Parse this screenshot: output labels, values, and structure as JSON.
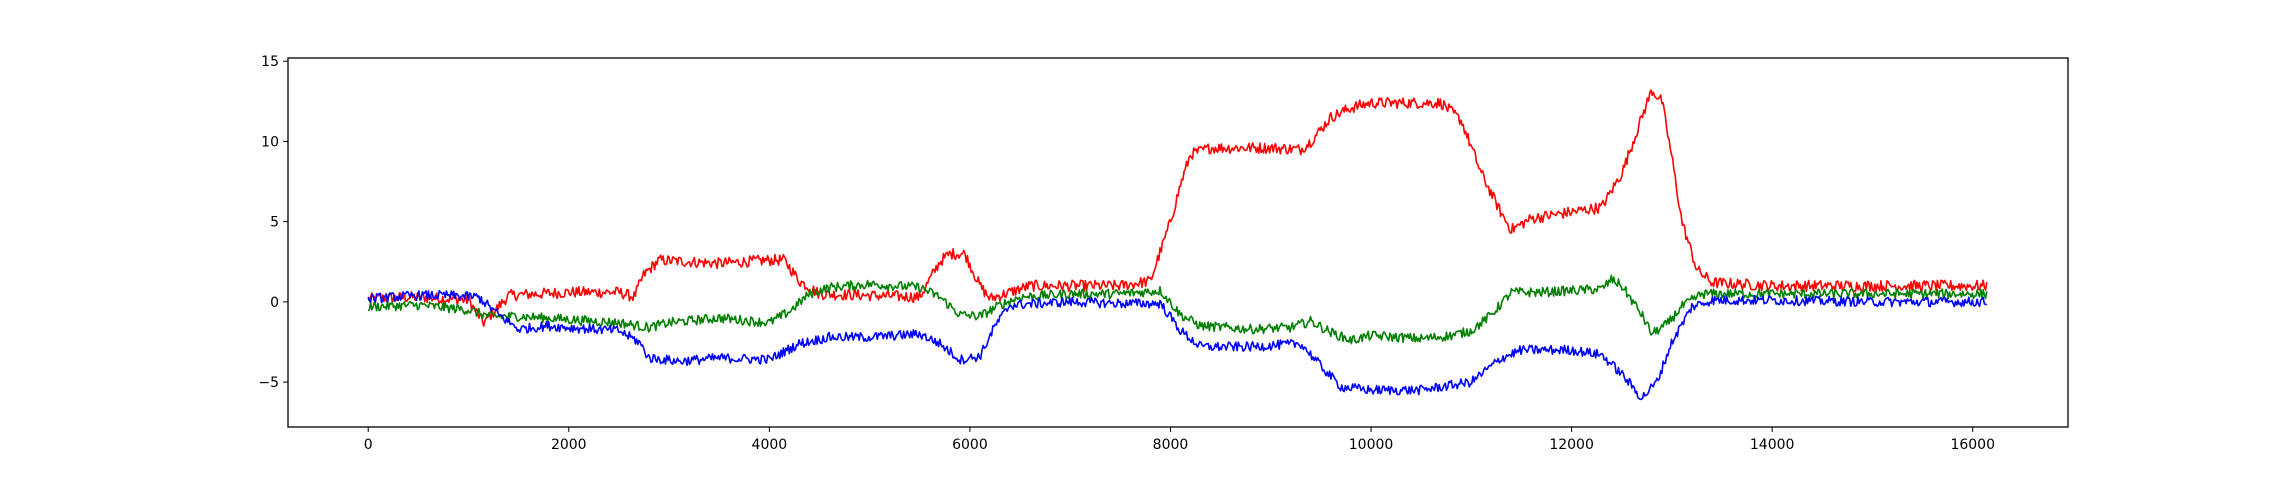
{
  "chart_data": {
    "type": "line",
    "title": "",
    "xlabel": "",
    "ylabel": "",
    "xlim": [
      -800,
      16950
    ],
    "ylim": [
      -7.8,
      15.2
    ],
    "xticks": [
      0,
      2000,
      4000,
      6000,
      8000,
      10000,
      12000,
      14000,
      16000
    ],
    "yticks": [
      -5,
      0,
      5,
      10,
      15
    ],
    "grid": false,
    "legend": "none",
    "series": [
      {
        "color": "#ff0000",
        "noise": 0.35,
        "points": [
          [
            0,
            0.2
          ],
          [
            500,
            0.3
          ],
          [
            1000,
            0.1
          ],
          [
            1150,
            -1.3
          ],
          [
            1300,
            -0.3
          ],
          [
            1400,
            0.4
          ],
          [
            2000,
            0.6
          ],
          [
            2500,
            0.6
          ],
          [
            2650,
            0.3
          ],
          [
            2750,
            1.7
          ],
          [
            2900,
            2.6
          ],
          [
            3500,
            2.4
          ],
          [
            4000,
            2.6
          ],
          [
            4150,
            2.6
          ],
          [
            4300,
            1.3
          ],
          [
            4500,
            0.5
          ],
          [
            5000,
            0.4
          ],
          [
            5500,
            0.3
          ],
          [
            5700,
            2.5
          ],
          [
            5800,
            3.0
          ],
          [
            5950,
            3.0
          ],
          [
            6100,
            1.0
          ],
          [
            6200,
            0.2
          ],
          [
            6400,
            0.6
          ],
          [
            6600,
            1.0
          ],
          [
            7000,
            1.0
          ],
          [
            7500,
            1.0
          ],
          [
            7800,
            1.3
          ],
          [
            8000,
            5.0
          ],
          [
            8100,
            7.3
          ],
          [
            8200,
            9.2
          ],
          [
            8400,
            9.6
          ],
          [
            9000,
            9.6
          ],
          [
            9300,
            9.5
          ],
          [
            9400,
            10.0
          ],
          [
            9600,
            11.5
          ],
          [
            9800,
            12.1
          ],
          [
            10000,
            12.4
          ],
          [
            10500,
            12.4
          ],
          [
            10700,
            12.4
          ],
          [
            10900,
            11.3
          ],
          [
            11100,
            8.0
          ],
          [
            11300,
            5.5
          ],
          [
            11400,
            4.5
          ],
          [
            11600,
            5.2
          ],
          [
            12000,
            5.6
          ],
          [
            12300,
            5.9
          ],
          [
            12500,
            8.0
          ],
          [
            12700,
            11.5
          ],
          [
            12800,
            13.2
          ],
          [
            12900,
            12.5
          ],
          [
            13000,
            9.0
          ],
          [
            13100,
            5.0
          ],
          [
            13250,
            2.0
          ],
          [
            13400,
            1.2
          ],
          [
            14000,
            1.0
          ],
          [
            15000,
            1.0
          ],
          [
            16000,
            1.0
          ],
          [
            16150,
            1.0
          ]
        ]
      },
      {
        "color": "#008000",
        "noise": 0.3,
        "points": [
          [
            0,
            -0.3
          ],
          [
            500,
            -0.2
          ],
          [
            1000,
            -0.5
          ],
          [
            1200,
            -0.9
          ],
          [
            1500,
            -0.9
          ],
          [
            2000,
            -1.1
          ],
          [
            2500,
            -1.3
          ],
          [
            2800,
            -1.6
          ],
          [
            3000,
            -1.3
          ],
          [
            3500,
            -1.0
          ],
          [
            4000,
            -1.3
          ],
          [
            4200,
            -0.6
          ],
          [
            4400,
            0.5
          ],
          [
            4600,
            0.9
          ],
          [
            5000,
            1.1
          ],
          [
            5500,
            0.9
          ],
          [
            5700,
            0.3
          ],
          [
            5900,
            -0.8
          ],
          [
            6100,
            -0.9
          ],
          [
            6300,
            -0.2
          ],
          [
            6500,
            0.3
          ],
          [
            7000,
            0.5
          ],
          [
            7500,
            0.5
          ],
          [
            7900,
            0.7
          ],
          [
            8100,
            -0.8
          ],
          [
            8300,
            -1.5
          ],
          [
            8800,
            -1.7
          ],
          [
            9200,
            -1.6
          ],
          [
            9400,
            -1.2
          ],
          [
            9600,
            -1.9
          ],
          [
            9800,
            -2.4
          ],
          [
            10000,
            -2.1
          ],
          [
            10500,
            -2.3
          ],
          [
            10800,
            -2.1
          ],
          [
            11000,
            -1.8
          ],
          [
            11200,
            -0.8
          ],
          [
            11400,
            0.6
          ],
          [
            11700,
            0.6
          ],
          [
            12000,
            0.7
          ],
          [
            12300,
            0.8
          ],
          [
            12400,
            1.4
          ],
          [
            12500,
            1.0
          ],
          [
            12700,
            -0.8
          ],
          [
            12800,
            -2.0
          ],
          [
            12950,
            -1.4
          ],
          [
            13100,
            -0.3
          ],
          [
            13300,
            0.5
          ],
          [
            14000,
            0.5
          ],
          [
            15000,
            0.5
          ],
          [
            16000,
            0.5
          ],
          [
            16150,
            0.5
          ]
        ]
      },
      {
        "color": "#0000ff",
        "noise": 0.3,
        "points": [
          [
            0,
            0.2
          ],
          [
            500,
            0.4
          ],
          [
            800,
            0.4
          ],
          [
            1100,
            0.3
          ],
          [
            1300,
            -0.8
          ],
          [
            1500,
            -1.7
          ],
          [
            1800,
            -1.5
          ],
          [
            2000,
            -1.6
          ],
          [
            2500,
            -1.8
          ],
          [
            2700,
            -2.5
          ],
          [
            2800,
            -3.5
          ],
          [
            3100,
            -3.7
          ],
          [
            3500,
            -3.5
          ],
          [
            4000,
            -3.6
          ],
          [
            4300,
            -2.6
          ],
          [
            4600,
            -2.2
          ],
          [
            5000,
            -2.2
          ],
          [
            5500,
            -2.0
          ],
          [
            5700,
            -2.6
          ],
          [
            5900,
            -3.6
          ],
          [
            6100,
            -3.4
          ],
          [
            6250,
            -1.5
          ],
          [
            6400,
            -0.2
          ],
          [
            7000,
            0.0
          ],
          [
            7500,
            -0.1
          ],
          [
            7900,
            -0.1
          ],
          [
            8100,
            -1.8
          ],
          [
            8300,
            -2.8
          ],
          [
            8800,
            -2.8
          ],
          [
            9300,
            -2.6
          ],
          [
            9500,
            -4.0
          ],
          [
            9700,
            -5.3
          ],
          [
            10000,
            -5.5
          ],
          [
            10500,
            -5.5
          ],
          [
            11000,
            -5.0
          ],
          [
            11300,
            -3.5
          ],
          [
            11500,
            -3.0
          ],
          [
            12000,
            -3.0
          ],
          [
            12300,
            -3.3
          ],
          [
            12500,
            -4.5
          ],
          [
            12700,
            -6.0
          ],
          [
            12850,
            -5.0
          ],
          [
            13000,
            -2.5
          ],
          [
            13200,
            -0.3
          ],
          [
            13400,
            0.1
          ],
          [
            14000,
            0.1
          ],
          [
            15000,
            0.0
          ],
          [
            16000,
            0.0
          ],
          [
            16150,
            0.0
          ]
        ]
      }
    ]
  }
}
